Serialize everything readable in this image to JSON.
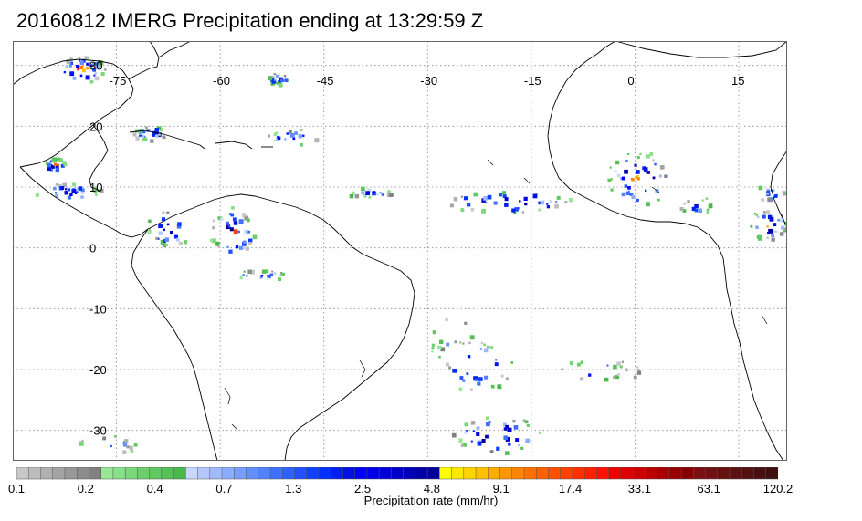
{
  "title": "20160812 IMERG Precipitation ending at 13:29:59 Z",
  "map": {
    "lon_labels": [
      "-75",
      "-60",
      "-45",
      "-30",
      "-15",
      "0",
      "15"
    ],
    "lat_labels": [
      "30",
      "20",
      "10",
      "0",
      "-10",
      "-20",
      "-30"
    ],
    "lon_values": [
      -75,
      -60,
      -45,
      -30,
      -15,
      0,
      15
    ],
    "lat_values": [
      30,
      20,
      10,
      0,
      -10,
      -20,
      -30
    ],
    "extent": {
      "lon_min": -90,
      "lon_max": 22,
      "lat_min": -35,
      "lat_max": 34
    },
    "gridlines": "dotted"
  },
  "colorbar": {
    "title": "Precipitation rate (mm/hr)",
    "tick_labels": [
      "0.1",
      "0.2",
      "0.4",
      "0.7",
      "1.3",
      "2.5",
      "4.8",
      "9.1",
      "17.4",
      "33.1",
      "63.1",
      "120.2"
    ],
    "colors": [
      "#c8c8c8",
      "#bcbcbc",
      "#b0b0b0",
      "#a4a4a4",
      "#989898",
      "#8c8c8c",
      "#808080",
      "#96e696",
      "#88e088",
      "#7ad87a",
      "#6ccf6c",
      "#60c860",
      "#55c055",
      "#4ab84a",
      "#c8d8ff",
      "#b4c8ff",
      "#a0baff",
      "#8cacff",
      "#789eff",
      "#6490ff",
      "#5082ff",
      "#4070ff",
      "#3060ff",
      "#2050ff",
      "#1040ff",
      "#0030ff",
      "#0020f0",
      "#0010e0",
      "#0000ff",
      "#0000e8",
      "#0000d8",
      "#0000c8",
      "#0000b8",
      "#0000a8",
      "#000098",
      "#ffff00",
      "#ffe800",
      "#ffd400",
      "#ffc000",
      "#ffac00",
      "#ff9800",
      "#ff8400",
      "#ff7000",
      "#ff6000",
      "#ff5000",
      "#ff4000",
      "#ff3000",
      "#ff2000",
      "#ff1000",
      "#ee0000",
      "#dd0000",
      "#cc0000",
      "#bb0000",
      "#aa0000",
      "#990000",
      "#880000",
      "#7a1010",
      "#701010",
      "#661010",
      "#5c1010",
      "#521010",
      "#481010",
      "#3e1010"
    ]
  }
}
